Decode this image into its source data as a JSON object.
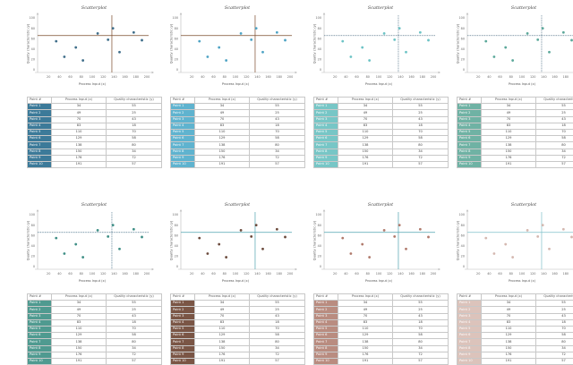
{
  "headers": [
    "Point #",
    "Process Input (x)",
    "Quality characteristic (y)"
  ],
  "chart_data": [
    {
      "type": "scatter",
      "title": "Scatterplot",
      "xlabel": "Process Input (x)",
      "ylabel": "Quality characteristic (y)",
      "xlim": [
        0,
        200
      ],
      "ylim": [
        0,
        100
      ],
      "xticks": [
        20,
        40,
        60,
        80,
        100,
        120,
        140,
        160,
        180,
        200
      ],
      "yticks": [
        0,
        20,
        40,
        60,
        80,
        100
      ],
      "ref_x": 136,
      "ref_y": 66,
      "points": [
        {
          "label": "Point 1",
          "x": 34,
          "y": 55
        },
        {
          "label": "Point 2",
          "x": 49,
          "y": 25
        },
        {
          "label": "Point 3",
          "x": 70,
          "y": 43
        },
        {
          "label": "Point 4",
          "x": 83,
          "y": 18
        },
        {
          "label": "Point 5",
          "x": 110,
          "y": 70
        },
        {
          "label": "Point 6",
          "x": 129,
          "y": 58
        },
        {
          "label": "Point 7",
          "x": 138,
          "y": 80
        },
        {
          "label": "Point 8",
          "x": 150,
          "y": 34
        },
        {
          "label": "Point 9",
          "x": 176,
          "y": 72
        },
        {
          "label": "Point 10",
          "x": 191,
          "y": 57
        }
      ]
    }
  ],
  "variants": [
    {
      "point_color": "#3f6e8a",
      "line_color": "#7a4a2a",
      "line_style": "solid",
      "row_color": "#3c7a99"
    },
    {
      "point_color": "#4ea3c4",
      "line_color": "#7a4a2a",
      "line_style": "solid",
      "row_color": "#5fb3cf"
    },
    {
      "point_color": "#6cc3c5",
      "line_color": "#3d5f78",
      "line_style": "dotted",
      "row_color": "#77c6c6"
    },
    {
      "point_color": "#5ba89a",
      "line_color": "#3d5f78",
      "line_style": "dotted",
      "row_color": "#6fb2a4"
    },
    {
      "point_color": "#3f8f86",
      "line_color": "#2f5d77",
      "line_style": "dotted",
      "row_color": "#4f9a90"
    },
    {
      "point_color": "#6b4a3c",
      "line_color": "#4ea3b0",
      "line_style": "solid",
      "row_color": "#7a5545"
    },
    {
      "point_color": "#b07a6c",
      "line_color": "#4ea3b0",
      "line_style": "solid",
      "row_color": "#b98c80"
    },
    {
      "point_color": "#d4b8b0",
      "line_color": "#7fc1c9",
      "line_style": "solid",
      "row_color": "#dcc3bb"
    }
  ]
}
